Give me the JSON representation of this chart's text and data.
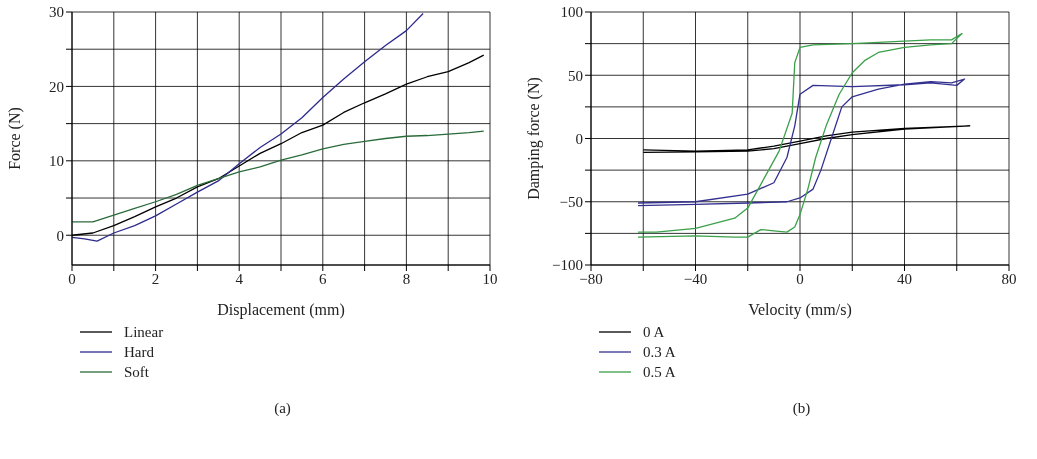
{
  "chart_data": [
    {
      "type": "line",
      "xlabel": "Displacement (mm)",
      "ylabel": "Force (N)",
      "xlim": [
        0,
        10
      ],
      "ylim": [
        -4,
        30
      ],
      "xticks": [
        0,
        {
          "value": 1,
          "label": null
        },
        2,
        {
          "value": 3,
          "label": null
        },
        4,
        {
          "value": 5,
          "label": null
        },
        6,
        {
          "value": 7,
          "label": null
        },
        8,
        {
          "value": 9,
          "label": null
        },
        10
      ],
      "yticks": [
        0,
        {
          "value": 5,
          "label": null
        },
        10,
        {
          "value": 15,
          "label": null
        },
        20,
        {
          "value": 25,
          "label": null
        },
        30
      ],
      "grid": true,
      "legend": "bottom left",
      "annotations": [
        "(a)"
      ],
      "series": [
        {
          "name": "Linear",
          "color": "#000000",
          "x": [
            0,
            0.5,
            1,
            1.5,
            2,
            2.5,
            3,
            3.5,
            4,
            4.5,
            5,
            5.5,
            6,
            6.5,
            7,
            7.5,
            8,
            8.5,
            9,
            9.5,
            9.85
          ],
          "values": [
            0,
            0.3,
            1.3,
            2.5,
            3.8,
            5,
            6.5,
            7.6,
            9.3,
            11,
            12.3,
            13.8,
            14.8,
            16.5,
            17.8,
            19,
            20.3,
            21.3,
            22,
            23.2,
            24.2
          ]
        },
        {
          "name": "Hard",
          "color": "#2e2a8c",
          "x": [
            0,
            0.3,
            0.6,
            1,
            1.5,
            2,
            2.5,
            3,
            3.5,
            4,
            4.5,
            5,
            5.5,
            6,
            6.5,
            7,
            7.5,
            8,
            8.4
          ],
          "values": [
            -0.3,
            -0.5,
            -0.8,
            0.3,
            1.3,
            2.6,
            4.2,
            5.8,
            7.3,
            9.6,
            11.8,
            13.6,
            15.8,
            18.5,
            21,
            23.3,
            25.5,
            27.5,
            29.8
          ]
        },
        {
          "name": "Soft",
          "color": "#2a6b3a",
          "x": [
            0,
            0.5,
            1,
            1.5,
            2,
            2.5,
            3,
            3.5,
            4,
            4.5,
            5,
            5.5,
            6,
            6.5,
            7,
            7.5,
            8,
            8.5,
            9,
            9.5,
            9.85
          ],
          "values": [
            1.8,
            1.8,
            2.7,
            3.6,
            4.5,
            5.5,
            6.7,
            7.6,
            8.5,
            9.2,
            10.1,
            10.8,
            11.6,
            12.2,
            12.6,
            13,
            13.3,
            13.4,
            13.6,
            13.8,
            14
          ]
        }
      ]
    },
    {
      "type": "line",
      "xlabel": "Velocity (mm/s)",
      "ylabel": "Damping force (N)",
      "xlim": [
        -80,
        80
      ],
      "ylim": [
        -100,
        100
      ],
      "xticks": [
        -80,
        {
          "value": -60,
          "label": null
        },
        -40,
        {
          "value": -20,
          "label": null
        },
        0,
        {
          "value": 20,
          "label": null
        },
        40,
        {
          "value": 60,
          "label": null
        },
        80
      ],
      "yticks": [
        -100,
        {
          "value": -75,
          "label": null
        },
        -50,
        {
          "value": -25,
          "label": null
        },
        0,
        {
          "value": 25,
          "label": null
        },
        50,
        {
          "value": 75,
          "label": null
        },
        100
      ],
      "grid": true,
      "legend": "bottom left",
      "annotations": [
        "(b)"
      ],
      "series": [
        {
          "name": "0 A",
          "color": "#000000",
          "x": [
            -60,
            -40,
            -20,
            -10,
            0,
            10,
            20,
            40,
            65,
            40,
            20,
            10,
            0,
            -10,
            -20,
            -40,
            -60
          ],
          "values": [
            -9,
            -10,
            -9,
            -6,
            -2,
            2,
            5,
            8,
            10,
            7.5,
            3,
            0,
            -4,
            -8,
            -10,
            -10.5,
            -11
          ]
        },
        {
          "name": "0.3 A",
          "color": "#33308f",
          "x": [
            -62,
            -40,
            -20,
            -5,
            0,
            5,
            8,
            12,
            16,
            20,
            30,
            40,
            50,
            58,
            63,
            60,
            50,
            40,
            20,
            5,
            0,
            -2,
            -5,
            -10,
            -20,
            -40,
            -62
          ],
          "values": [
            -53,
            -52,
            -51,
            -50,
            -47,
            -40,
            -25,
            0,
            25,
            33,
            39,
            43,
            45,
            44,
            47,
            42,
            44,
            42.5,
            41,
            42,
            35,
            10,
            -15,
            -35,
            -44,
            -50,
            -51
          ]
        },
        {
          "name": "0.5 A",
          "color": "#3aa04a",
          "x": [
            -62,
            -40,
            -25,
            -20,
            -15,
            -10,
            -5,
            -2,
            0,
            3,
            6,
            10,
            15,
            20,
            25,
            30,
            40,
            50,
            58,
            62,
            58,
            50,
            40,
            20,
            5,
            0,
            -2,
            -3,
            -8,
            -12,
            -20,
            -25,
            -40,
            -55,
            -62
          ],
          "values": [
            -78,
            -77,
            -78,
            -78,
            -72,
            -73,
            -74,
            -70,
            -60,
            -40,
            -15,
            10,
            35,
            52,
            62,
            68,
            72,
            74,
            75,
            83,
            78,
            78,
            77,
            75,
            74,
            72,
            60,
            20,
            -10,
            -25,
            -55,
            -63,
            -71,
            -74,
            -74
          ]
        }
      ]
    }
  ]
}
